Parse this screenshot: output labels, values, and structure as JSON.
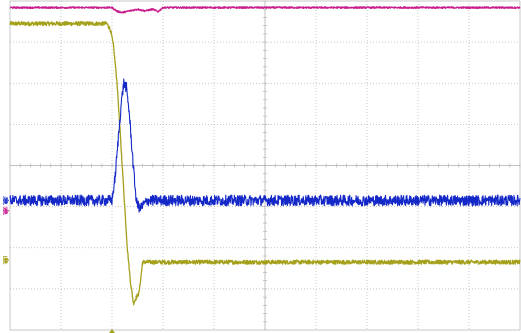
{
  "chart_data": {
    "type": "line",
    "title": "",
    "xlabel": "",
    "ylabel": "",
    "grid": true,
    "grid_divisions": {
      "x": 10,
      "y": 8
    },
    "xlim": [
      0,
      10
    ],
    "ylim": [
      -4,
      4
    ],
    "trigger_x": 2.0,
    "colors": {
      "grid": "#b4b4b4",
      "background": "#ffffff",
      "C1": "#a4a01a",
      "C2": "#c81e8c",
      "C3": "#1428c8"
    },
    "series": [
      {
        "name": "C1",
        "color": "#a4a01a",
        "marker_level": -2.3,
        "x": [
          0,
          1.9,
          1.97,
          2.03,
          2.1,
          2.15,
          2.2,
          2.25,
          2.3,
          2.36,
          2.42,
          2.48,
          2.53,
          2.6,
          10
        ],
        "y": [
          3.45,
          3.45,
          3.3,
          2.9,
          2.0,
          1.0,
          0.0,
          -1.0,
          -2.0,
          -2.8,
          -3.35,
          -3.2,
          -3.1,
          -2.35,
          -2.35
        ],
        "noise": 0.05
      },
      {
        "name": "C2",
        "color": "#c81e8c",
        "marker_level": -1.1,
        "x": [
          0,
          2.0,
          2.1,
          2.2,
          2.35,
          2.5,
          2.65,
          2.8,
          2.9,
          3.0,
          3.4,
          10
        ],
        "y": [
          3.84,
          3.84,
          3.75,
          3.72,
          3.76,
          3.8,
          3.76,
          3.8,
          3.74,
          3.84,
          3.84,
          3.84
        ],
        "noise": 0.02
      },
      {
        "name": "C3",
        "color": "#1428c8",
        "marker_level": -0.85,
        "x": [
          0,
          2.0,
          2.06,
          2.12,
          2.18,
          2.23,
          2.28,
          2.33,
          2.38,
          2.43,
          2.48,
          2.55,
          2.62,
          2.7,
          10
        ],
        "y": [
          -0.85,
          -0.85,
          -0.3,
          0.6,
          1.5,
          2.0,
          1.9,
          1.4,
          0.6,
          -0.2,
          -0.9,
          -1.05,
          -0.95,
          -0.85,
          -0.85
        ],
        "noise": 0.13
      }
    ]
  }
}
